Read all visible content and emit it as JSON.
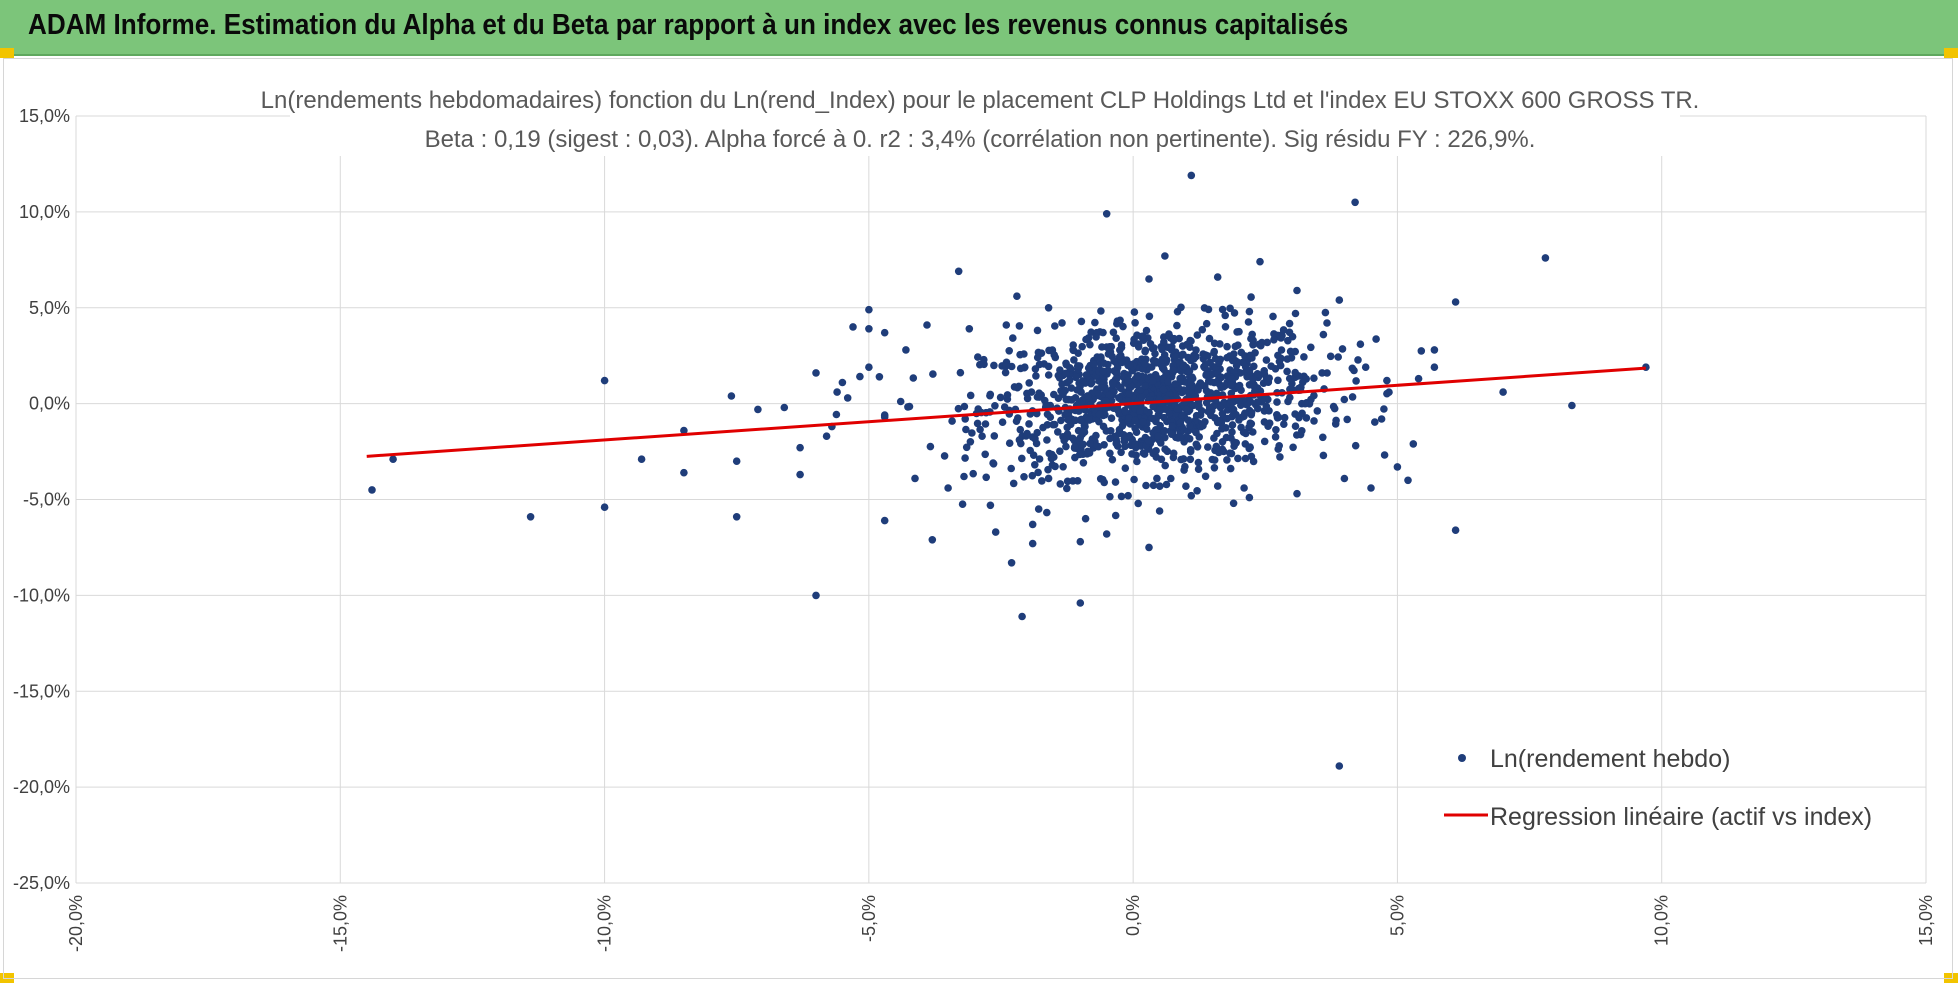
{
  "header": {
    "title": "ADAM Informe. Estimation du Alpha et du Beta par rapport à un index avec les revenus connus capitalisés"
  },
  "colors": {
    "header_bg": "#7cc57a",
    "corner_accent": "#f2c400",
    "points": "#1f3d7a",
    "regression": "#e00000",
    "grid": "#d9d9d9"
  },
  "chart_data": {
    "type": "scatter",
    "title_line1": "Ln(rendements hebdomadaires) fonction du Ln(rend_Index) pour le placement CLP Holdings Ltd et l'index EU STOXX 600 GROSS TR.",
    "title_line2": "Beta : 0,19 (sigest : 0,03).  Alpha forcé à 0. r2 : 3,4% (corrélation non pertinente). Sig résidu FY : 226,9%.",
    "xlabel": "",
    "ylabel": "",
    "xlim": [
      -0.2,
      0.15
    ],
    "ylim": [
      -0.25,
      0.15
    ],
    "x_ticks": [
      -0.2,
      -0.15,
      -0.1,
      -0.05,
      0.0,
      0.05,
      0.1,
      0.15
    ],
    "x_tick_labels": [
      "-20,0%",
      "-15,0%",
      "-10,0%",
      "-5,0%",
      "0,0%",
      "5,0%",
      "10,0%",
      "15,0%"
    ],
    "y_ticks": [
      0.15,
      0.1,
      0.05,
      0.0,
      -0.05,
      -0.1,
      -0.15,
      -0.2,
      -0.25
    ],
    "y_tick_labels": [
      "15,0%",
      "10,0%",
      "5,0%",
      "0,0%",
      "-5,0%",
      "-10,0%",
      "-15,0%",
      "-20,0%",
      "-25,0%"
    ],
    "grid": true,
    "legend_position": "bottom-right",
    "series": [
      {
        "name": "Ln(rendement hebdo)",
        "kind": "scatter",
        "note": "Dense cloud of ~1300 weekly points centred near (0.5%, 0.2%); listed points are the visible outliers, cloud is generated around them.",
        "points": [
          [
            -0.144,
            -0.045
          ],
          [
            -0.14,
            -0.029
          ],
          [
            -0.114,
            -0.059
          ],
          [
            -0.1,
            0.012
          ],
          [
            -0.1,
            -0.054
          ],
          [
            -0.093,
            -0.029
          ],
          [
            -0.085,
            -0.014
          ],
          [
            -0.085,
            -0.036
          ],
          [
            -0.075,
            -0.03
          ],
          [
            -0.075,
            -0.059
          ],
          [
            -0.076,
            0.004
          ],
          [
            -0.071,
            -0.003
          ],
          [
            -0.066,
            -0.002
          ],
          [
            -0.063,
            -0.023
          ],
          [
            -0.063,
            -0.037
          ],
          [
            -0.06,
            -0.1
          ],
          [
            -0.06,
            0.016
          ],
          [
            -0.058,
            -0.017
          ],
          [
            -0.057,
            -0.012
          ],
          [
            -0.056,
            0.006
          ],
          [
            -0.055,
            0.011
          ],
          [
            -0.054,
            0.003
          ],
          [
            -0.053,
            0.04
          ],
          [
            -0.05,
            0.039
          ],
          [
            -0.05,
            0.019
          ],
          [
            -0.048,
            0.014
          ],
          [
            -0.047,
            -0.007
          ],
          [
            -0.05,
            0.049
          ],
          [
            -0.043,
            0.028
          ],
          [
            -0.047,
            -0.006
          ],
          [
            -0.047,
            -0.061
          ],
          [
            -0.047,
            0.037
          ],
          [
            -0.038,
            -0.071
          ],
          [
            -0.039,
            0.041
          ],
          [
            -0.035,
            -0.044
          ],
          [
            -0.033,
            0.069
          ],
          [
            -0.032,
            -0.038
          ],
          [
            -0.031,
            0.039
          ],
          [
            -0.027,
            -0.053
          ],
          [
            -0.026,
            -0.067
          ],
          [
            -0.024,
            0.041
          ],
          [
            -0.023,
            -0.083
          ],
          [
            -0.022,
            0.056
          ],
          [
            -0.021,
            -0.111
          ],
          [
            -0.019,
            -0.063
          ],
          [
            -0.019,
            -0.073
          ],
          [
            -0.016,
            0.05
          ],
          [
            -0.016,
            -0.039
          ],
          [
            -0.01,
            -0.104
          ],
          [
            -0.01,
            -0.072
          ],
          [
            -0.009,
            -0.06
          ],
          [
            -0.005,
            -0.068
          ],
          [
            -0.005,
            0.099
          ],
          [
            -0.003,
            0.043
          ],
          [
            0.003,
            -0.075
          ],
          [
            0.003,
            0.065
          ],
          [
            0.005,
            -0.056
          ],
          [
            0.006,
            0.077
          ],
          [
            0.011,
            0.119
          ],
          [
            0.011,
            -0.048
          ],
          [
            0.016,
            -0.043
          ],
          [
            0.016,
            0.066
          ],
          [
            0.019,
            -0.052
          ],
          [
            0.021,
            -0.044
          ],
          [
            0.022,
            0.048
          ],
          [
            0.024,
            0.074
          ],
          [
            0.022,
            -0.049
          ],
          [
            0.031,
            0.059
          ],
          [
            0.031,
            -0.047
          ],
          [
            0.036,
            -0.027
          ],
          [
            0.036,
            0.036
          ],
          [
            0.039,
            0.054
          ],
          [
            0.039,
            -0.189
          ],
          [
            0.042,
            0.105
          ],
          [
            0.043,
            0.031
          ],
          [
            0.044,
            0.019
          ],
          [
            0.045,
            -0.044
          ],
          [
            0.047,
            -0.008
          ],
          [
            0.048,
            0.012
          ],
          [
            0.05,
            -0.033
          ],
          [
            0.052,
            -0.04
          ],
          [
            0.053,
            -0.021
          ],
          [
            0.054,
            0.013
          ],
          [
            0.057,
            0.019
          ],
          [
            0.057,
            0.028
          ],
          [
            0.061,
            0.053
          ],
          [
            0.061,
            -0.066
          ],
          [
            0.07,
            0.006
          ],
          [
            0.078,
            0.076
          ],
          [
            0.083,
            -0.001
          ],
          [
            0.097,
            0.019
          ]
        ]
      },
      {
        "name": "Regression linéaire (actif vs index)",
        "kind": "line",
        "x": [
          -0.145,
          0.097
        ],
        "y": [
          -0.0275,
          0.0185
        ]
      }
    ]
  }
}
